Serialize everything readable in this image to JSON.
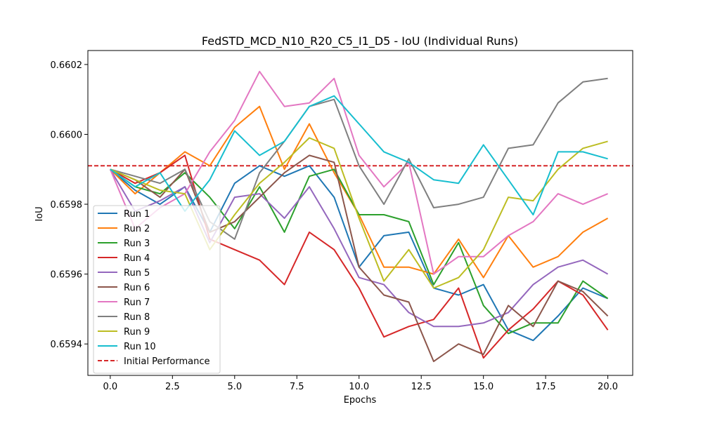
{
  "chart_data": {
    "type": "line",
    "title": "FedSTD_MCD_N10_R20_C5_I1_D5 - IoU (Individual Runs)",
    "xlabel": "Epochs",
    "ylabel": "IoU",
    "xlim": [
      -0.9,
      21.0
    ],
    "ylim": [
      0.65931,
      0.66024
    ],
    "x_ticks": [
      0,
      2.5,
      5,
      7.5,
      10,
      12.5,
      15,
      17.5,
      20
    ],
    "x_tick_labels": [
      "0.0",
      "2.5",
      "5.0",
      "7.5",
      "10.0",
      "12.5",
      "15.0",
      "17.5",
      "20.0"
    ],
    "y_ticks": [
      0.6594,
      0.6596,
      0.6598,
      0.66,
      0.6602
    ],
    "y_tick_labels": [
      "0.6594",
      "0.6596",
      "0.6598",
      "0.6600",
      "0.6602"
    ],
    "legend_position": "lower-left",
    "grid": false,
    "x": [
      0,
      1,
      2,
      3,
      4,
      5,
      6,
      7,
      8,
      9,
      10,
      11,
      12,
      13,
      14,
      15,
      16,
      17,
      18,
      19,
      20
    ],
    "series": [
      {
        "name": "Run 1",
        "color": "#1f77b4",
        "values": [
          0.6599,
          0.65984,
          0.6598,
          0.65985,
          0.65972,
          0.65986,
          0.65991,
          0.65988,
          0.65991,
          0.65982,
          0.65962,
          0.65971,
          0.65972,
          0.65956,
          0.65954,
          0.65957,
          0.65944,
          0.65941,
          0.65948,
          0.65956,
          0.65953
        ]
      },
      {
        "name": "Run 2",
        "color": "#ff7f0e",
        "values": [
          0.6599,
          0.65983,
          0.65989,
          0.65995,
          0.65991,
          0.66002,
          0.66008,
          0.6599,
          0.66003,
          0.65989,
          0.65977,
          0.65962,
          0.65962,
          0.6596,
          0.6597,
          0.65959,
          0.65971,
          0.65962,
          0.65965,
          0.65972,
          0.65976
        ]
      },
      {
        "name": "Run 3",
        "color": "#2ca02c",
        "values": [
          0.6599,
          0.65985,
          0.65983,
          0.65989,
          0.65982,
          0.65973,
          0.65985,
          0.65972,
          0.65988,
          0.6599,
          0.65977,
          0.65977,
          0.65975,
          0.65957,
          0.65969,
          0.65951,
          0.65943,
          0.65946,
          0.65946,
          0.65958,
          0.65953
        ]
      },
      {
        "name": "Run 4",
        "color": "#d62728",
        "values": [
          0.6599,
          0.65986,
          0.65989,
          0.65994,
          0.6597,
          0.65967,
          0.65964,
          0.65957,
          0.65972,
          0.65967,
          0.65956,
          0.65942,
          0.65945,
          0.65947,
          0.65956,
          0.65936,
          0.65944,
          0.6595,
          0.65958,
          0.65954,
          0.65944
        ]
      },
      {
        "name": "Run 5",
        "color": "#9467bd",
        "values": [
          0.6599,
          0.65978,
          0.65981,
          0.65985,
          0.65969,
          0.65982,
          0.65983,
          0.65976,
          0.65985,
          0.65973,
          0.65959,
          0.65957,
          0.65949,
          0.65945,
          0.65945,
          0.65946,
          0.65949,
          0.65957,
          0.65962,
          0.65964,
          0.6596
        ]
      },
      {
        "name": "Run 6",
        "color": "#8c564b",
        "values": [
          0.6599,
          0.65987,
          0.65982,
          0.6599,
          0.65972,
          0.65975,
          0.65982,
          0.65989,
          0.65994,
          0.65992,
          0.65962,
          0.65954,
          0.65952,
          0.65935,
          0.6594,
          0.65937,
          0.65951,
          0.65945,
          0.65958,
          0.65955,
          0.65948
        ]
      },
      {
        "name": "Run 7",
        "color": "#e377c2",
        "values": [
          0.6599,
          0.65973,
          0.65979,
          0.65983,
          0.65995,
          0.66004,
          0.66018,
          0.66008,
          0.66009,
          0.66016,
          0.65994,
          0.65985,
          0.65992,
          0.6596,
          0.65965,
          0.65965,
          0.65971,
          0.65975,
          0.65983,
          0.6598,
          0.65983
        ]
      },
      {
        "name": "Run 8",
        "color": "#7f7f7f",
        "values": [
          0.6599,
          0.65988,
          0.65986,
          0.6599,
          0.65975,
          0.6597,
          0.65989,
          0.65998,
          0.66008,
          0.6601,
          0.65991,
          0.6598,
          0.65993,
          0.65979,
          0.6598,
          0.65982,
          0.65996,
          0.65997,
          0.66009,
          0.66015,
          0.66016
        ]
      },
      {
        "name": "Run 9",
        "color": "#bcbd22",
        "values": [
          0.6599,
          0.65987,
          0.65984,
          0.65983,
          0.65967,
          0.65977,
          0.65986,
          0.65992,
          0.65999,
          0.65996,
          0.65976,
          0.65958,
          0.65967,
          0.65956,
          0.65959,
          0.65967,
          0.65982,
          0.65981,
          0.6599,
          0.65996,
          0.65998
        ]
      },
      {
        "name": "Run 10",
        "color": "#17becf",
        "values": [
          0.6599,
          0.65985,
          0.65989,
          0.65978,
          0.65987,
          0.66001,
          0.65994,
          0.65998,
          0.66008,
          0.66011,
          0.66003,
          0.65995,
          0.65992,
          0.65987,
          0.65986,
          0.65997,
          0.65987,
          0.65977,
          0.65995,
          0.65995,
          0.65993
        ]
      }
    ],
    "reference_line": {
      "name": "Initial Performance",
      "value": 0.65991,
      "color": "#d62728",
      "style": "dashed"
    }
  }
}
